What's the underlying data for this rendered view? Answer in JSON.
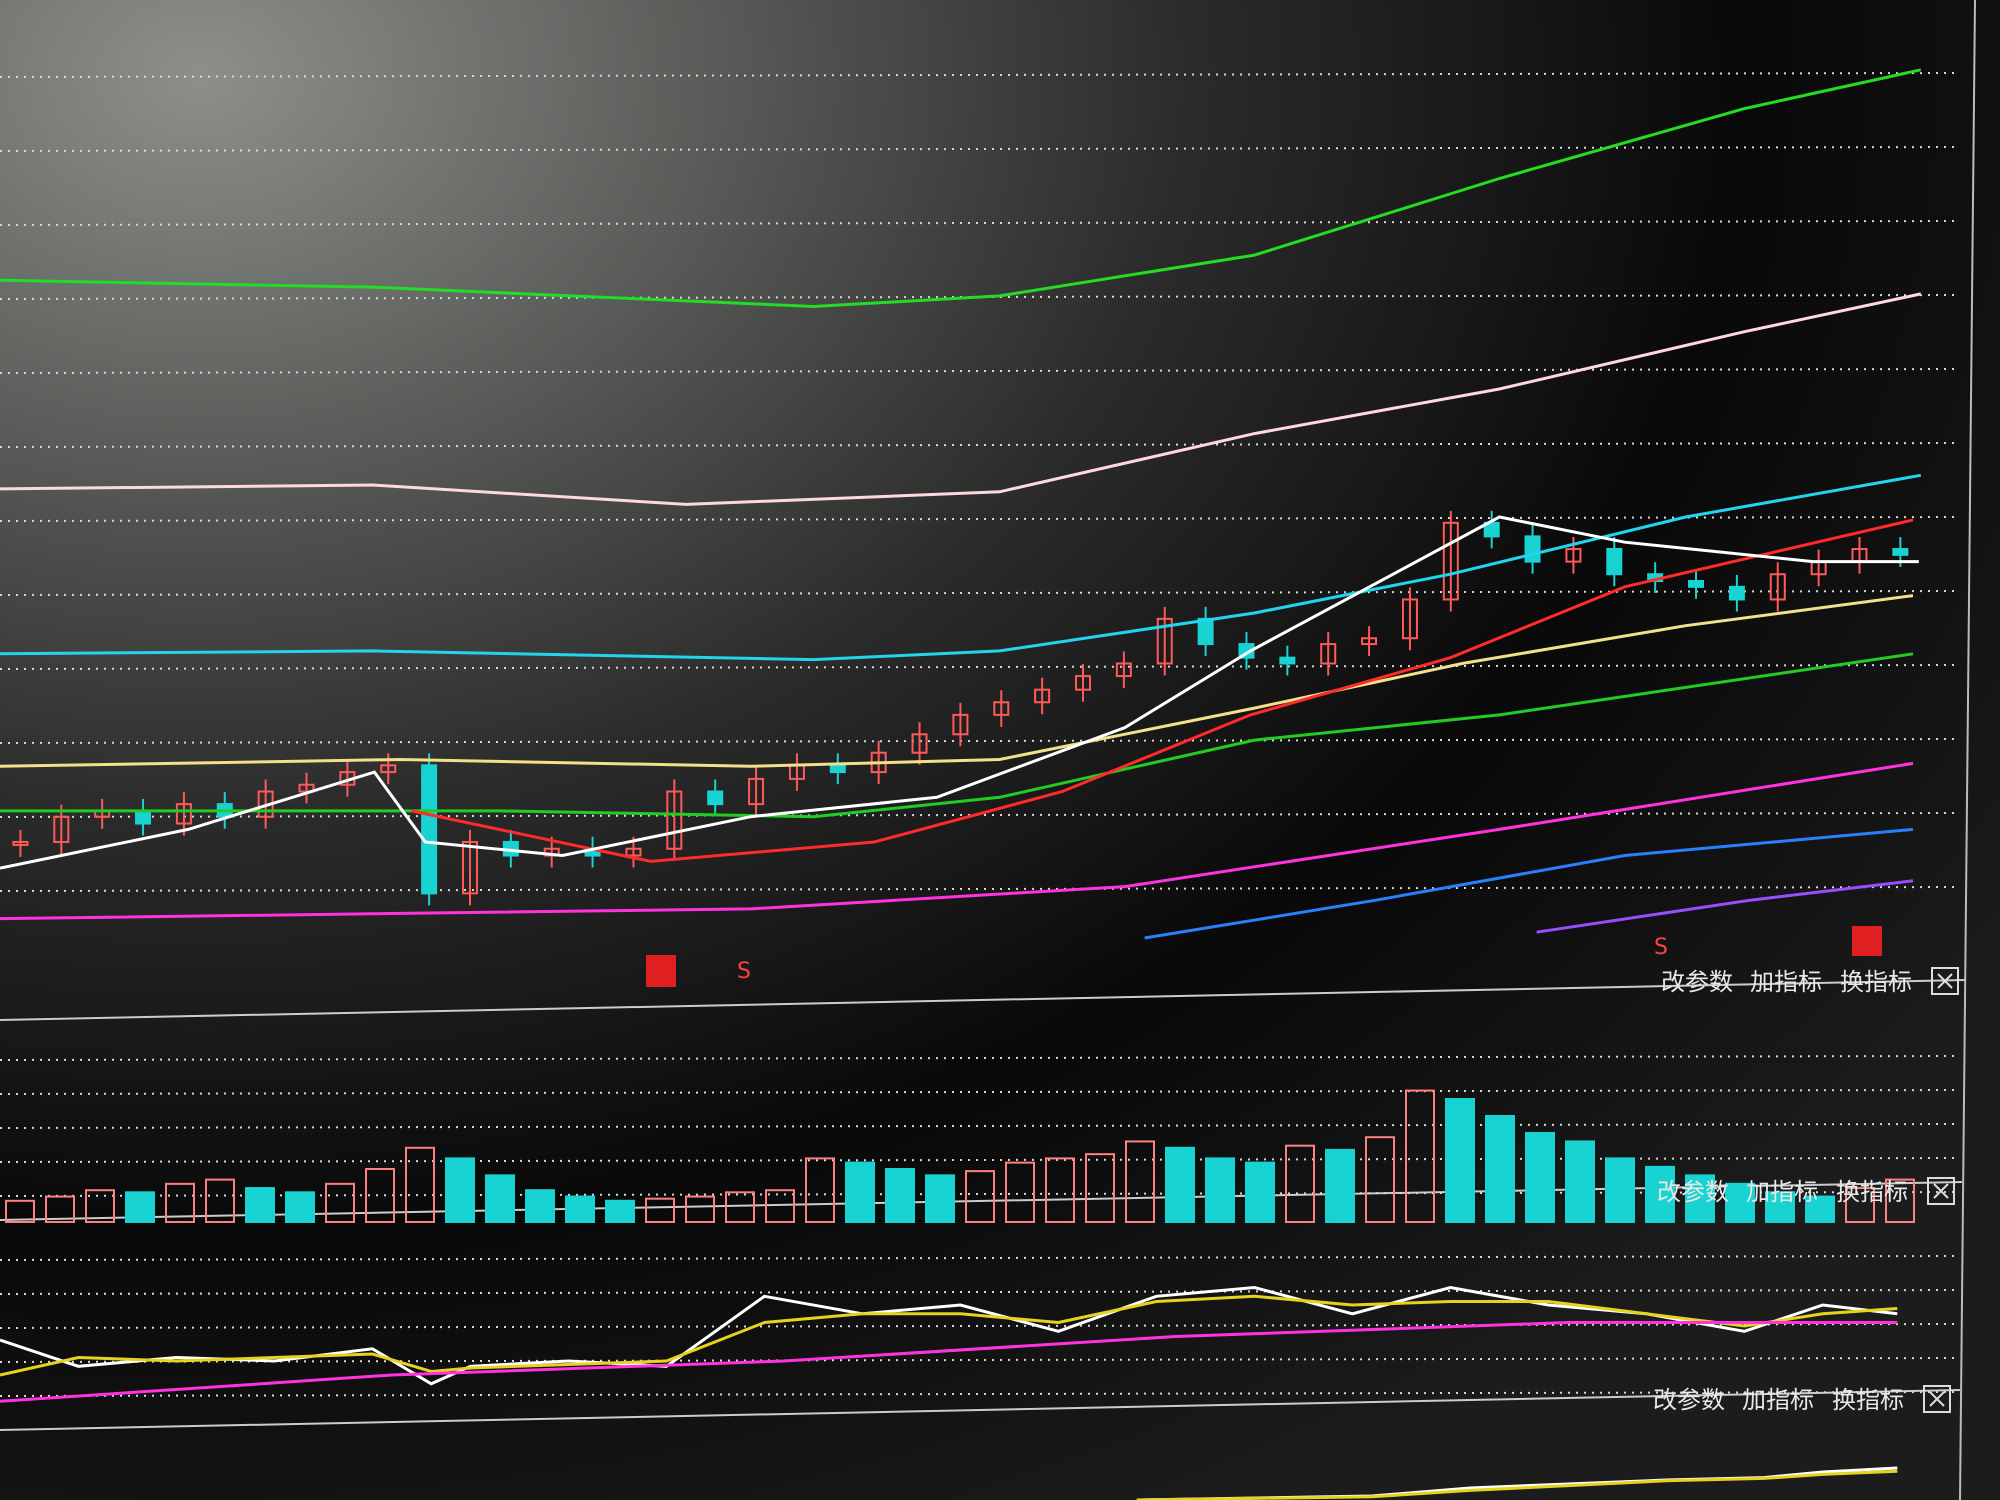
{
  "chart_data": [
    {
      "type": "line",
      "xlim": [
        0,
        100
      ],
      "ylim": [
        0,
        100
      ],
      "series": [
        {
          "color": "#22dd22",
          "x": [
            0,
            19,
            41.5,
            51,
            64,
            76.5,
            89,
            98
          ],
          "values": [
            71.1,
            70.4,
            68.4,
            69.5,
            73.7,
            81.6,
            88.8,
            92.8
          ]
        },
        {
          "color": "#ffd8dc",
          "x": [
            0,
            19,
            35,
            51,
            64,
            76.5,
            89,
            98
          ],
          "values": [
            49.6,
            50,
            48,
            49.3,
            55.3,
            59.9,
            65.8,
            69.7
          ]
        },
        {
          "color": "#22d4ee",
          "x": [
            0,
            19,
            41.5,
            51,
            64,
            74,
            86,
            98
          ],
          "values": [
            32.6,
            32.9,
            32,
            32.9,
            36.8,
            40.8,
            46.7,
            51
          ]
        },
        {
          "color": "#f2e08a",
          "x": [
            0,
            20.4,
            38.3,
            51,
            64,
            74.6,
            86,
            97.6
          ],
          "values": [
            21,
            21.7,
            21,
            21.7,
            27,
            31.6,
            35.5,
            38.6
          ]
        },
        {
          "color": "#22cc22",
          "x": [
            0,
            25.5,
            41.5,
            51,
            64,
            76.5,
            97.6
          ],
          "values": [
            16.4,
            16.4,
            15.8,
            17.8,
            23.7,
            26.3,
            32.6
          ]
        },
        {
          "color": "#ff2a2a",
          "x": [
            21,
            33.2,
            44.6,
            54.2,
            63.8,
            74,
            82.9,
            97.6
          ],
          "values": [
            16.4,
            11.2,
            13.2,
            18.4,
            26.3,
            32.2,
            39.5,
            46.4
          ]
        },
        {
          "color": "#ff33dd",
          "x": [
            0,
            38.3,
            57.4,
            76.5,
            97.6
          ],
          "values": [
            5.3,
            6.3,
            8.6,
            14.5,
            21.3
          ]
        },
        {
          "color": "#2a7fff",
          "x": [
            58.4,
            70.2,
            82.9,
            97.6
          ],
          "values": [
            3.3,
            7.2,
            11.8,
            14.5
          ]
        },
        {
          "color": "#9a4dff",
          "x": [
            78.4,
            89.3,
            97.6
          ],
          "values": [
            3.9,
            7.2,
            9.2
          ]
        },
        {
          "color": "#ffffff",
          "x": [
            0,
            9.6,
            19.1,
            21.7,
            28.7,
            38.3,
            47.8,
            57.4,
            63.8,
            76.5,
            82.9,
            92.5,
            97.9
          ],
          "values": [
            10.5,
            14.5,
            20.4,
            13.2,
            11.8,
            15.8,
            17.8,
            25,
            32.9,
            46.7,
            44.1,
            42.1,
            42.1
          ]
        }
      ],
      "candles": {
        "color_up": "#ff5a5a",
        "color_down": "#19d3d3",
        "values": [
          13.2,
          15.8,
          16.4,
          15.1,
          17.1,
          15.8,
          18.4,
          19.1,
          20.4,
          21.1,
          7.9,
          13.2,
          11.8,
          12.5,
          11.8,
          12.5,
          18.4,
          17.1,
          19.7,
          21.1,
          20.4,
          22.4,
          24.3,
          26.3,
          27.6,
          28.9,
          30.3,
          31.6,
          36.2,
          33.6,
          32.2,
          31.6,
          33.6,
          34.2,
          38.2,
          46.1,
          44.7,
          42.1,
          43.4,
          40.8,
          40.1,
          39.5,
          38.2,
          40.8,
          42.1,
          43.4,
          42.8
        ]
      }
    },
    {
      "type": "bar",
      "ylim": [
        0,
        100
      ],
      "color_up": "#ff8080",
      "color_down": "#19d3d3",
      "values": [
        10,
        12,
        15,
        14,
        18,
        20,
        16,
        14,
        18,
        25,
        35,
        30,
        22,
        15,
        12,
        10,
        11,
        12,
        14,
        15,
        30,
        28,
        25,
        22,
        24,
        28,
        30,
        32,
        38,
        35,
        30,
        28,
        36,
        34,
        40,
        62,
        58,
        50,
        42,
        38,
        30,
        26,
        22,
        18,
        14,
        12,
        16,
        20
      ]
    },
    {
      "type": "line",
      "xlim": [
        0,
        100
      ],
      "ylim": [
        0,
        100
      ],
      "series": [
        {
          "color": "#ffffff",
          "x": [
            0,
            4,
            9,
            14,
            19,
            22,
            24,
            29,
            34,
            39,
            44,
            49,
            54,
            59,
            64,
            69,
            74,
            79,
            84,
            89,
            93,
            96.8
          ],
          "values": [
            40,
            25,
            30,
            28,
            35,
            15,
            25,
            28,
            25,
            65,
            55,
            60,
            45,
            65,
            70,
            55,
            70,
            60,
            55,
            45,
            60,
            55
          ]
        },
        {
          "color": "#e6d31e",
          "x": [
            0,
            4,
            9,
            14,
            19,
            22,
            24,
            29,
            34,
            39,
            44,
            49,
            54,
            59,
            64,
            69,
            74,
            79,
            84,
            89,
            93,
            96.8
          ],
          "values": [
            20,
            30,
            28,
            30,
            32,
            22,
            24,
            26,
            28,
            50,
            55,
            55,
            50,
            62,
            65,
            60,
            62,
            62,
            55,
            48,
            55,
            58
          ]
        },
        {
          "color": "#ff33dd",
          "x": [
            0,
            20,
            40,
            60,
            80,
            96.8
          ],
          "values": [
            5,
            20,
            28,
            42,
            50,
            50
          ]
        }
      ]
    },
    {
      "type": "line",
      "xlim": [
        0,
        100
      ],
      "ylim": [
        0,
        100
      ],
      "series": [
        {
          "color": "#ffffff",
          "x": [
            58,
            70,
            75,
            80,
            85,
            90,
            93,
            96.8
          ],
          "values": [
            0,
            5,
            15,
            20,
            25,
            28,
            35,
            40
          ]
        },
        {
          "color": "#e6d31e",
          "x": [
            58,
            70,
            75,
            80,
            85,
            90,
            93,
            96.8
          ],
          "values": [
            0,
            4,
            12,
            18,
            24,
            27,
            32,
            36
          ]
        }
      ]
    }
  ],
  "toolbars": [
    {
      "buttons": [
        "改参数",
        "加指标",
        "换指标"
      ]
    },
    {
      "buttons": [
        "改参数",
        "加指标",
        "换指标"
      ]
    },
    {
      "buttons": [
        "改参数",
        "加指标",
        "换指标"
      ]
    }
  ],
  "signals": [
    "S",
    "S"
  ]
}
